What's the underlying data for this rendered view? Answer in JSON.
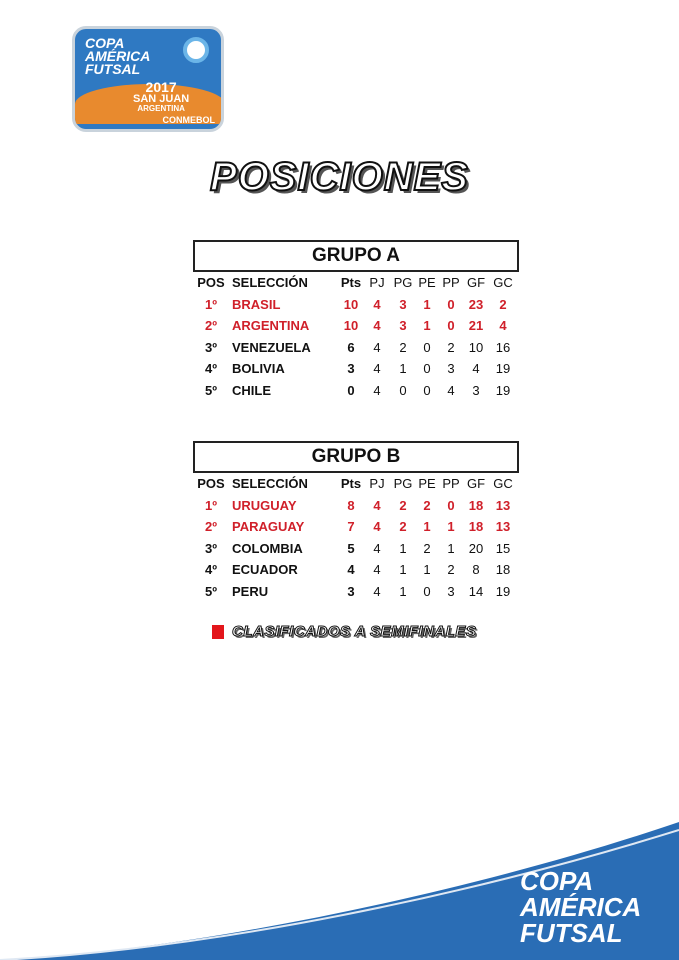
{
  "logo": {
    "line1": "COPA",
    "line2": "AMÉRICA",
    "line3": "FUTSAL",
    "year": "2017",
    "city": "SAN JUAN",
    "country": "ARGENTINA",
    "org": "CONMEBOL"
  },
  "title": "POSICIONES",
  "columns": [
    "POS",
    "SELECCIÓN",
    "Pts",
    "PJ",
    "PG",
    "PE",
    "PP",
    "GF",
    "GC"
  ],
  "groups": [
    {
      "name": "GRUPO A",
      "rows": [
        [
          "1º",
          "BRASIL",
          "10",
          "4",
          "3",
          "1",
          "0",
          "23",
          "2"
        ],
        [
          "2º",
          "ARGENTINA",
          "10",
          "4",
          "3",
          "1",
          "0",
          "21",
          "4"
        ],
        [
          "3º",
          "VENEZUELA",
          "6",
          "4",
          "2",
          "0",
          "2",
          "10",
          "16"
        ],
        [
          "4º",
          "BOLIVIA",
          "3",
          "4",
          "1",
          "0",
          "3",
          "4",
          "19"
        ],
        [
          "5º",
          "CHILE",
          "0",
          "4",
          "0",
          "0",
          "4",
          "3",
          "19"
        ]
      ]
    },
    {
      "name": "GRUPO B",
      "rows": [
        [
          "1º",
          "URUGUAY",
          "8",
          "4",
          "2",
          "2",
          "0",
          "18",
          "13"
        ],
        [
          "2º",
          "PARAGUAY",
          "7",
          "4",
          "2",
          "1",
          "1",
          "18",
          "13"
        ],
        [
          "3º",
          "COLOMBIA",
          "5",
          "4",
          "1",
          "2",
          "1",
          "20",
          "15"
        ],
        [
          "4º",
          "ECUADOR",
          "4",
          "4",
          "1",
          "1",
          "2",
          "8",
          "18"
        ],
        [
          "5º",
          "PERU",
          "3",
          "4",
          "1",
          "0",
          "3",
          "14",
          "19"
        ]
      ]
    }
  ],
  "legend": "CLASIFICADOS A SEMIFINALES",
  "footer": {
    "line1": "COPA",
    "line2": "AMÉRICA",
    "line3": "FUTSAL"
  },
  "colors": {
    "qualified": "#d0202a",
    "brand_blue": "#2a6db5"
  }
}
